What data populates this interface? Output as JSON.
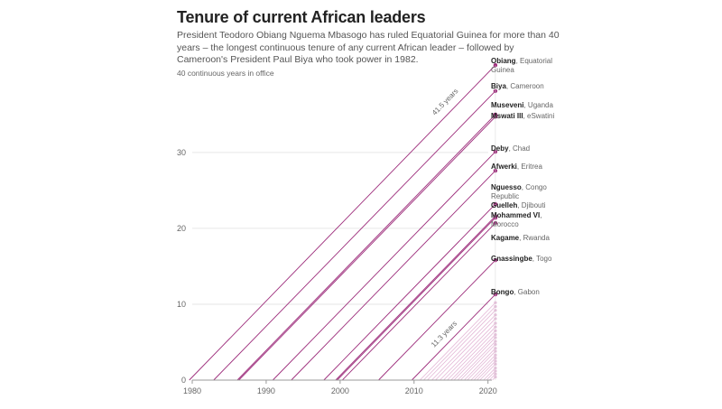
{
  "title": "Tenure of current African leaders",
  "subtitle": "President Teodoro Obiang Nguema Mbasogo has ruled Equatorial Guinea for more than 40 years – the longest continuous tenure of any current African leader – followed by Cameroon's President Paul Biya who took power in 1982.",
  "chart_data": {
    "type": "line",
    "title": "Tenure of current African leaders",
    "xlabel": "",
    "ylabel": "40 continuous years in office",
    "xlim": [
      1980,
      2021.5
    ],
    "ylim": [
      0,
      42
    ],
    "x_ticks": [
      1980,
      1990,
      2000,
      2010,
      2020
    ],
    "y_ticks": [
      0,
      10,
      20,
      30
    ],
    "end_year": 2021,
    "grid": "horizontal",
    "colors": {
      "highlight": "#9c2b7a",
      "minor": "#e3b6d6",
      "axis": "#999999",
      "label_line": "#cccccc"
    },
    "annotations": [
      {
        "text": "41.5 years",
        "near": "Obiang"
      },
      {
        "text": "11.3 years",
        "near": "Bongo"
      }
    ],
    "series": [
      {
        "name": "Obiang",
        "country": "Equatorial Guinea",
        "start": 1979.6,
        "tenure": 41.5
      },
      {
        "name": "Biya",
        "country": "Cameroon",
        "start": 1982.9,
        "tenure": 38.1
      },
      {
        "name": "Museveni",
        "country": "Uganda",
        "start": 1986.1,
        "tenure": 35.0
      },
      {
        "name": "Mswati III",
        "country": "eSwatini",
        "start": 1986.3,
        "tenure": 34.7
      },
      {
        "name": "Deby",
        "country": "Chad",
        "start": 1990.9,
        "tenure": 30.1
      },
      {
        "name": "Afwerki",
        "country": "Eritrea",
        "start": 1993.4,
        "tenure": 27.6
      },
      {
        "name": "Nguesso",
        "country": "Congo Republic",
        "start": 1997.8,
        "tenure": 23.2
      },
      {
        "name": "Guelleh",
        "country": "Djibouti",
        "start": 1999.4,
        "tenure": 21.6
      },
      {
        "name": "Mohammed VI",
        "country": "Morocco",
        "start": 1999.6,
        "tenure": 21.4
      },
      {
        "name": "Kagame",
        "country": "Rwanda",
        "start": 2000.3,
        "tenure": 20.7
      },
      {
        "name": "Gnassingbe",
        "country": "Togo",
        "start": 2005.2,
        "tenure": 15.8
      },
      {
        "name": "Bongo",
        "country": "Gabon",
        "start": 2009.7,
        "tenure": 11.3
      }
    ],
    "minor_tenures": [
      10.2,
      9.7,
      9.2,
      8.6,
      8.1,
      7.5,
      7.0,
      6.5,
      6.0,
      5.6,
      5.1,
      4.7,
      4.2,
      3.8,
      3.3,
      2.9,
      2.5,
      2.1,
      1.6,
      1.2,
      0.8,
      0.4
    ]
  }
}
